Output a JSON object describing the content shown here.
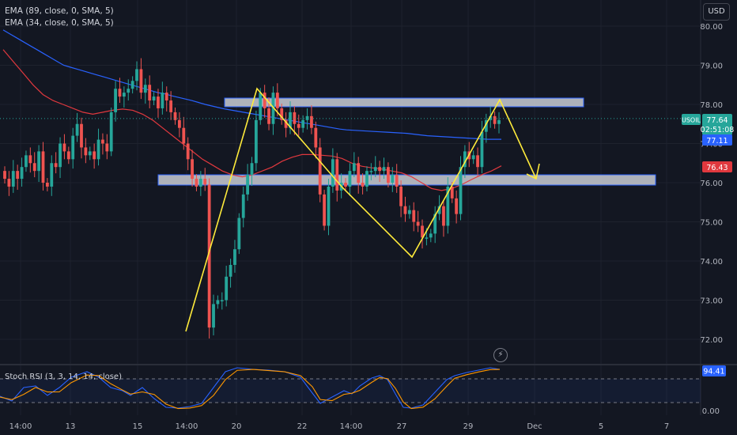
{
  "header": {
    "legend_ema89": "EMA (89, close, 0, SMA, 5)",
    "legend_ema34": "EMA (34, close, 0, SMA, 5)",
    "currency_button": "USD"
  },
  "colors": {
    "bg": "#131722",
    "up": "#26a69a",
    "down": "#ef5350",
    "ema89": "#2962ff",
    "ema34": "#e0383e",
    "drawing": "#ffeb3b",
    "zone_fill": "#d1d4dc",
    "zone_border": "#2962ff",
    "stoch_k": "#2962ff",
    "stoch_d": "#ff9800"
  },
  "price_labels": {
    "symbol_tag": "USOIL",
    "last_price": "77.64",
    "countdown": "02:51:08",
    "ema89_value": "77.11",
    "ema34_value": "76.43"
  },
  "stoch_panel": {
    "legend": "Stoch RSI (3, 3, 14, 14, close)",
    "value_label": "94.41",
    "tick_label": "0.00"
  },
  "chart_data": {
    "type": "candlestick",
    "title": "",
    "y_ticks": [
      "80.00",
      "79.00",
      "78.00",
      "77.00",
      "76.00",
      "75.00",
      "74.00",
      "73.00",
      "72.00"
    ],
    "ylim": [
      71.4,
      80.4
    ],
    "x_ticks": [
      "14:00",
      "13",
      "15",
      "14:00",
      "20",
      "22",
      "14:00",
      "27",
      "29",
      "Dec",
      "5",
      "7"
    ],
    "closes": [
      76.1,
      75.9,
      76.3,
      76.1,
      76.4,
      76.7,
      76.5,
      76.3,
      76.8,
      76.0,
      75.9,
      76.5,
      76.4,
      77.0,
      76.8,
      76.6,
      77.2,
      77.5,
      76.9,
      76.7,
      76.8,
      76.6,
      77.1,
      77.0,
      76.8,
      77.8,
      78.4,
      78.2,
      78.3,
      78.4,
      78.6,
      78.9,
      78.3,
      78.5,
      78.1,
      78.2,
      77.9,
      78.3,
      78.1,
      77.8,
      77.6,
      77.4,
      77.0,
      76.6,
      76.1,
      75.9,
      76.1,
      75.95,
      72.3,
      72.9,
      73.0,
      73.0,
      73.6,
      73.9,
      74.3,
      75.1,
      75.7,
      76.2,
      76.5,
      77.6,
      78.3,
      77.9,
      77.5,
      78.3,
      77.9,
      77.6,
      77.4,
      77.8,
      77.5,
      77.4,
      77.6,
      77.7,
      77.4,
      76.9,
      75.7,
      74.9,
      75.9,
      76.6,
      75.8,
      76.0,
      75.9,
      76.3,
      76.5,
      76.0,
      75.9,
      76.3,
      76.3,
      76.4,
      76.3,
      76.4,
      76.0,
      76.2,
      75.9,
      75.4,
      75.2,
      75.3,
      75.0,
      74.9,
      74.6,
      74.6,
      74.7,
      75.2,
      75.4,
      74.9,
      75.9,
      75.6,
      75.2,
      76.4,
      76.8,
      76.6,
      76.7,
      76.4,
      77.3,
      77.6,
      77.7,
      77.5,
      77.6
    ],
    "ema89": [
      79.9,
      79.8,
      79.7,
      79.6,
      79.5,
      79.4,
      79.3,
      79.2,
      79.1,
      79.0,
      78.95,
      78.9,
      78.85,
      78.8,
      78.75,
      78.7,
      78.65,
      78.6,
      78.55,
      78.5,
      78.45,
      78.4,
      78.35,
      78.3,
      78.27,
      78.22,
      78.18,
      78.14,
      78.1,
      78.05,
      78.0,
      77.96,
      77.92,
      77.88,
      77.85,
      77.82,
      77.79,
      77.76,
      77.73,
      77.7,
      77.67,
      77.64,
      77.61,
      77.58,
      77.55,
      77.52,
      77.49,
      77.46,
      77.43,
      77.4,
      77.37,
      77.35,
      77.34,
      77.33,
      77.32,
      77.31,
      77.3,
      77.29,
      77.28,
      77.27,
      77.26,
      77.24,
      77.22,
      77.2,
      77.19,
      77.18,
      77.17,
      77.16,
      77.15,
      77.14,
      77.13,
      77.12,
      77.11,
      77.11,
      77.11
    ],
    "ema34": [
      79.4,
      79.1,
      78.8,
      78.5,
      78.25,
      78.1,
      78.0,
      77.9,
      77.8,
      77.75,
      77.8,
      77.85,
      77.88,
      77.85,
      77.75,
      77.6,
      77.4,
      77.2,
      77.0,
      76.8,
      76.6,
      76.45,
      76.3,
      76.2,
      76.15,
      76.2,
      76.3,
      76.4,
      76.55,
      76.65,
      76.72,
      76.72,
      76.7,
      76.68,
      76.62,
      76.5,
      76.42,
      76.38,
      76.35,
      76.3,
      76.25,
      76.15,
      76.0,
      75.85,
      75.8,
      75.85,
      75.95,
      76.08,
      76.2,
      76.3,
      76.43
    ]
  }
}
